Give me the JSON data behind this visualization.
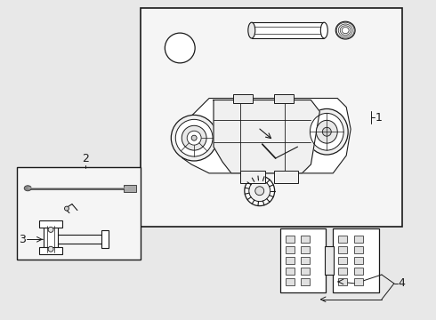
{
  "bg_color": "#e8e8e8",
  "box_fill": "#ffffff",
  "line_color": "#1a1a1a",
  "light_gray": "#d0d0d0",
  "label_fontsize": 9,
  "figsize": [
    4.9,
    3.6
  ],
  "dpi": 100,
  "labels": [
    "1",
    "2",
    "3",
    "4"
  ]
}
